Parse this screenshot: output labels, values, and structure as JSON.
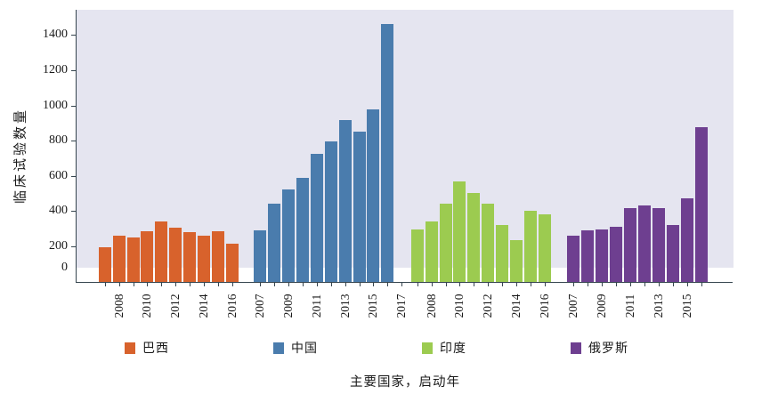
{
  "chart_data": {
    "type": "bar",
    "title": "",
    "ylabel": "临床试验数量",
    "xlabel": "主要国家，启动年",
    "ylim": [
      0,
      1540
    ],
    "y_ticks": [
      0,
      200,
      400,
      600,
      800,
      1000,
      1200,
      1400
    ],
    "grid": false,
    "legend_position": "bottom",
    "panel_background": "#e5e5f0",
    "years": [
      2007,
      2008,
      2009,
      2010,
      2011,
      2012,
      2013,
      2014,
      2015,
      2016
    ],
    "series": [
      {
        "name": "巴西",
        "color": "#d8622c",
        "shown_year_labels": [
          2008,
          2010,
          2012,
          2014,
          2016
        ],
        "values": [
          195,
          260,
          250,
          285,
          340,
          305,
          280,
          260,
          285,
          215
        ]
      },
      {
        "name": "中国",
        "color": "#4a7cad",
        "shown_year_labels": [
          2007,
          2009,
          2011,
          2013,
          2015,
          2017
        ],
        "extra_empty_tick_year": 2017,
        "values": [
          290,
          440,
          525,
          590,
          725,
          795,
          915,
          850,
          980,
          1465
        ]
      },
      {
        "name": "印度",
        "color": "#9ccb50",
        "shown_year_labels": [
          2008,
          2010,
          2012,
          2014,
          2016
        ],
        "values": [
          295,
          340,
          440,
          570,
          505,
          440,
          320,
          235,
          400,
          380
        ]
      },
      {
        "name": "俄罗斯",
        "color": "#6e3f90",
        "shown_year_labels": [
          2007,
          2009,
          2011,
          2013,
          2015
        ],
        "values": [
          260,
          290,
          295,
          310,
          415,
          430,
          415,
          320,
          475,
          875
        ]
      }
    ]
  },
  "legend": {
    "items": [
      {
        "label": "巴西",
        "color": "#d8622c"
      },
      {
        "label": "中国",
        "color": "#4a7cad"
      },
      {
        "label": "印度",
        "color": "#9ccb50"
      },
      {
        "label": "俄罗斯",
        "color": "#6e3f90"
      }
    ]
  }
}
